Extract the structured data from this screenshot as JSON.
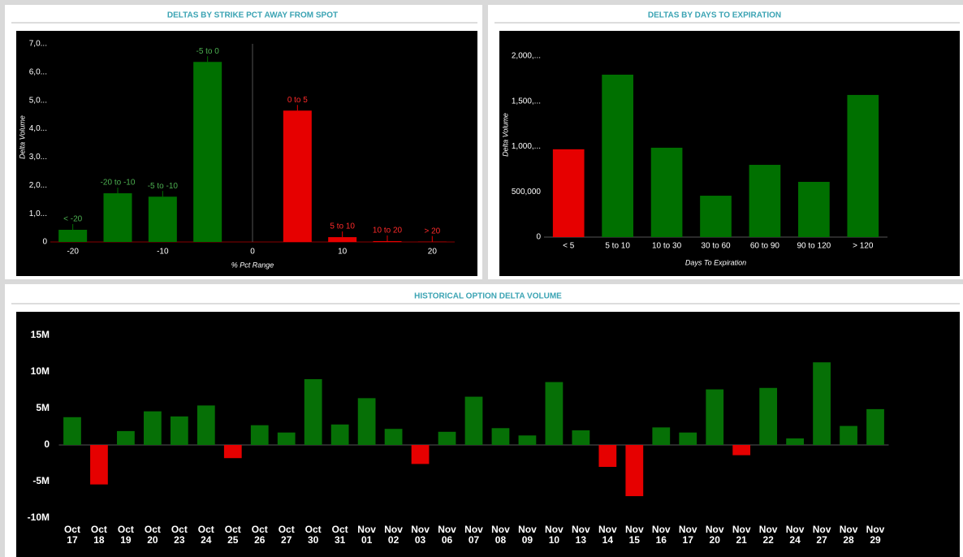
{
  "chart_data": [
    {
      "type": "bar",
      "title": "DELTAS BY STRIKE PCT AWAY FROM SPOT",
      "x_label": "% Pct Range",
      "y_label": "Delta Volume",
      "categories": [
        "< -20",
        "-20 to -10",
        "-5 to -10",
        "-5 to 0",
        "0 to 5",
        "5 to 10",
        "10 to 20",
        "> 20"
      ],
      "x": [
        -20,
        -15,
        -10,
        -5,
        5,
        10,
        15,
        20
      ],
      "values": [
        430000,
        1720000,
        1600000,
        6360000,
        4640000,
        170000,
        30000,
        10000
      ],
      "colors": [
        "#007000",
        "#007000",
        "#007000",
        "#007000",
        "#e60000",
        "#e60000",
        "#e60000",
        "#e60000"
      ],
      "xlim": [
        -22.5,
        22.5
      ],
      "xticks": [
        -20,
        -10,
        0,
        10,
        20
      ],
      "ylim": [
        0,
        7400000
      ],
      "yticks": [
        0,
        {
          "value": 1000000,
          "label": "1,0..."
        },
        {
          "value": 2000000,
          "label": "2,0..."
        },
        {
          "value": 3000000,
          "label": "3,0..."
        },
        {
          "value": 4000000,
          "label": "4,0..."
        },
        {
          "value": 5000000,
          "label": "5,0..."
        },
        {
          "value": 6000000,
          "label": "6,0..."
        },
        {
          "value": 7000000,
          "label": "7,0..."
        }
      ]
    },
    {
      "type": "bar",
      "title": "DELTAS BY DAYS TO EXPIRATION",
      "x_label": "Days To Expiration",
      "y_label": "Delta Volume",
      "categories": [
        "< 5",
        "5 to 10",
        "10 to 30",
        "30 to 60",
        "60 to 90",
        "90 to 120",
        "> 120"
      ],
      "values": [
        970000,
        1794000,
        987000,
        457000,
        798000,
        610000,
        1570000
      ],
      "colors": [
        "#e60000",
        "#007000",
        "#007000",
        "#007000",
        "#007000",
        "#007000",
        "#007000"
      ],
      "ylim": [
        0,
        2260000
      ],
      "yticks": [
        0,
        {
          "value": 500000,
          "label": "500,000"
        },
        {
          "value": 1000000,
          "label": "1,000,..."
        },
        {
          "value": 1500000,
          "label": "1,500,..."
        },
        {
          "value": 2000000,
          "label": "2,000,..."
        }
      ]
    },
    {
      "type": "bar",
      "title": "HISTORICAL OPTION DELTA VOLUME",
      "categories": [
        "Oct 17",
        "Oct 18",
        "Oct 19",
        "Oct 20",
        "Oct 23",
        "Oct 24",
        "Oct 25",
        "Oct 26",
        "Oct 27",
        "Oct 30",
        "Oct 31",
        "Nov 01",
        "Nov 02",
        "Nov 03",
        "Nov 06",
        "Nov 07",
        "Nov 08",
        "Nov 09",
        "Nov 10",
        "Nov 13",
        "Nov 14",
        "Nov 15",
        "Nov 16",
        "Nov 17",
        "Nov 20",
        "Nov 21",
        "Nov 22",
        "Nov 24",
        "Nov 27",
        "Nov 28",
        "Nov 29"
      ],
      "values": [
        3800000,
        -5400000,
        1900000,
        4600000,
        3900000,
        5400000,
        -1800000,
        2700000,
        1700000,
        9000000,
        2800000,
        6400000,
        2200000,
        -2600000,
        1800000,
        6600000,
        2300000,
        1300000,
        8600000,
        2000000,
        -3000000,
        -7000000,
        2400000,
        1700000,
        7600000,
        -1400000,
        7800000,
        900000,
        11300000,
        2600000,
        4900000
      ],
      "color": "#067006",
      "negative_color": "#e60000",
      "ylim": [
        -15100000,
        18100000
      ],
      "yticks": [
        {
          "value": -10000000,
          "label": "-10M"
        },
        {
          "value": -5000000,
          "label": "-5M"
        },
        0,
        {
          "value": 5000000,
          "label": "5M"
        },
        {
          "value": 10000000,
          "label": "10M"
        },
        {
          "value": 15000000,
          "label": "15M"
        }
      ]
    }
  ]
}
